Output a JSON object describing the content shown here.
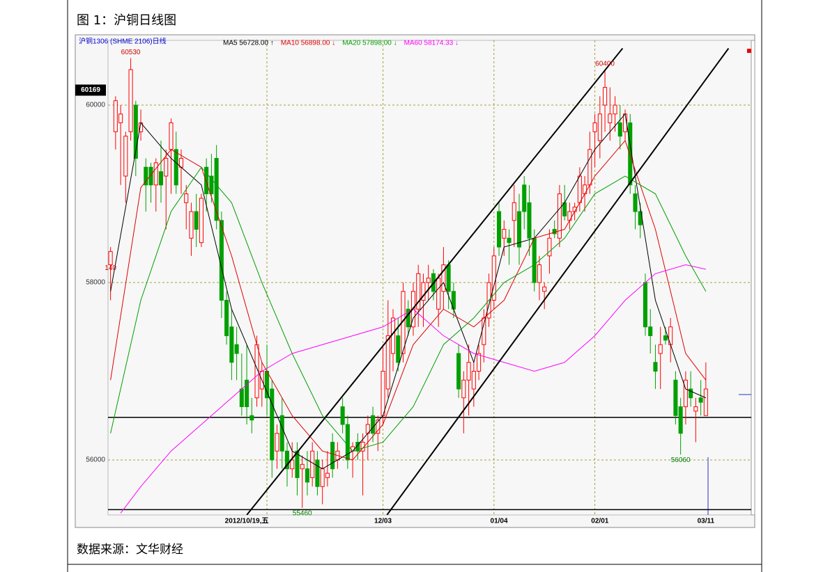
{
  "figure_title": "图 1：沪铜日线图",
  "source": "数据来源：文华财经",
  "chart_data": {
    "type": "candlestick",
    "ylim": [
      55380,
      60730
    ],
    "yticks": [
      56000,
      58000,
      60000
    ],
    "xlim": [
      -0.5,
      127
    ],
    "xgrid": [
      31,
      54,
      76,
      96
    ],
    "grid": true,
    "up_color": "#ff0000",
    "down_color": "#00a000",
    "categories": [
      null,
      null,
      null,
      null,
      null,
      null,
      null,
      null,
      null,
      null,
      null,
      null,
      null,
      null,
      null,
      null,
      null,
      null,
      null,
      null,
      null,
      null,
      null,
      null,
      null,
      null,
      null,
      "2012/10/19,五",
      null,
      null,
      null,
      null,
      null,
      null,
      null,
      null,
      null,
      null,
      null,
      null,
      null,
      null,
      null,
      null,
      null,
      null,
      null,
      null,
      null,
      null,
      null,
      null,
      null,
      null,
      "12/03",
      null,
      null,
      null,
      null,
      null,
      null,
      null,
      null,
      null,
      null,
      null,
      null,
      null,
      null,
      null,
      null,
      null,
      null,
      null,
      null,
      null,
      null,
      "01/04",
      null,
      null,
      null,
      null,
      null,
      null,
      null,
      null,
      null,
      null,
      null,
      null,
      null,
      null,
      null,
      null,
      null,
      null,
      null,
      "02/01",
      null,
      null,
      null,
      null,
      null,
      null,
      null,
      null,
      null,
      null,
      null,
      null,
      null,
      null,
      null,
      null,
      null,
      null,
      null,
      null,
      "03/11"
    ],
    "series": [
      {
        "name": "沪铜1306 (SHME 2106)日线",
        "color": "#0000cc",
        "ohlc": [
          [
            58200,
            58400,
            57800,
            58350
          ],
          [
            59700,
            60100,
            59500,
            60050
          ],
          [
            59800,
            60000,
            59100,
            59900
          ],
          [
            59200,
            59700,
            58900,
            59650
          ],
          [
            59700,
            60530,
            59600,
            60400
          ],
          [
            60000,
            60050,
            59200,
            59400
          ],
          [
            59700,
            59950,
            59600,
            59800
          ],
          [
            59300,
            59400,
            58800,
            59100
          ],
          [
            59300,
            59350,
            58900,
            59100
          ],
          [
            59100,
            59400,
            58800,
            59350
          ],
          [
            59250,
            59600,
            58900,
            59100
          ],
          [
            59200,
            59500,
            58600,
            59400
          ],
          [
            59500,
            59850,
            59000,
            59800
          ],
          [
            59500,
            59700,
            59000,
            59100
          ],
          [
            59300,
            59500,
            59000,
            59400
          ],
          [
            58900,
            59100,
            58600,
            59000
          ],
          [
            58500,
            58900,
            58300,
            58800
          ],
          [
            58800,
            59000,
            58400,
            58600
          ],
          [
            58450,
            59000,
            58400,
            58950
          ],
          [
            59300,
            59400,
            58800,
            59000
          ],
          [
            59200,
            59450,
            58900,
            59000
          ],
          [
            59400,
            59550,
            58600,
            58700
          ],
          [
            58700,
            58800,
            57600,
            57800
          ],
          [
            57800,
            57900,
            57300,
            57400
          ],
          [
            57500,
            57700,
            56900,
            57100
          ],
          [
            57300,
            57500,
            56900,
            57200
          ],
          [
            56800,
            57200,
            56500,
            56600
          ],
          [
            56900,
            57300,
            56400,
            56600
          ],
          [
            56500,
            56700,
            56300,
            56450
          ],
          [
            56700,
            57400,
            56600,
            57300
          ],
          [
            56800,
            57100,
            56600,
            57000
          ],
          [
            57000,
            57300,
            56500,
            56700
          ],
          [
            56800,
            56900,
            55800,
            56000
          ],
          [
            56100,
            56400,
            55900,
            56300
          ],
          [
            56500,
            56700,
            55900,
            56100
          ],
          [
            56100,
            56200,
            55700,
            55900
          ],
          [
            55900,
            56200,
            55800,
            56000
          ],
          [
            56100,
            56200,
            55600,
            55800
          ],
          [
            55900,
            56050,
            55460,
            55950
          ],
          [
            55900,
            56100,
            55600,
            55750
          ],
          [
            55800,
            56200,
            55700,
            56100
          ],
          [
            56000,
            56100,
            55600,
            55700
          ],
          [
            55700,
            56000,
            55500,
            55900
          ],
          [
            55800,
            56100,
            55700,
            55850
          ],
          [
            56200,
            56300,
            55800,
            55900
          ],
          [
            56000,
            56200,
            55900,
            56100
          ],
          [
            56600,
            56700,
            56300,
            56400
          ],
          [
            56400,
            56500,
            55900,
            56000
          ],
          [
            56100,
            56200,
            55800,
            56150
          ],
          [
            56200,
            56300,
            56000,
            56100
          ],
          [
            56100,
            56300,
            55600,
            56200
          ],
          [
            56300,
            56500,
            56000,
            56400
          ],
          [
            56500,
            56600,
            56200,
            56300
          ],
          [
            56300,
            56500,
            56100,
            56450
          ],
          [
            56500,
            57300,
            56400,
            57000
          ],
          [
            56800,
            57800,
            56700,
            57400
          ],
          [
            57200,
            57700,
            57000,
            57600
          ],
          [
            57400,
            57600,
            57000,
            57100
          ],
          [
            57200,
            58000,
            57100,
            57900
          ],
          [
            57700,
            57800,
            57400,
            57500
          ],
          [
            57500,
            58000,
            57400,
            57900
          ],
          [
            57700,
            58200,
            57500,
            58100
          ],
          [
            57800,
            58100,
            57500,
            58000
          ],
          [
            58000,
            58200,
            57800,
            58050
          ],
          [
            58100,
            58150,
            57800,
            57900
          ],
          [
            57700,
            58100,
            57500,
            58050
          ],
          [
            57900,
            58400,
            57700,
            58200
          ],
          [
            58200,
            58250,
            57700,
            57900
          ],
          [
            57900,
            58000,
            57600,
            57700
          ],
          [
            57200,
            57300,
            56700,
            56800
          ],
          [
            56700,
            57000,
            56300,
            56900
          ],
          [
            56900,
            57300,
            56500,
            57100
          ],
          [
            56800,
            57100,
            56600,
            57000
          ],
          [
            57000,
            57300,
            56900,
            57200
          ],
          [
            57300,
            57700,
            57100,
            57600
          ],
          [
            57600,
            58100,
            57500,
            58000
          ],
          [
            57800,
            58400,
            57700,
            58300
          ],
          [
            58800,
            58900,
            58300,
            58400
          ],
          [
            58500,
            58700,
            58300,
            58600
          ],
          [
            58500,
            58600,
            58200,
            58450
          ],
          [
            58700,
            59100,
            58400,
            58900
          ],
          [
            58800,
            59000,
            58200,
            58400
          ],
          [
            59100,
            59200,
            58600,
            58800
          ],
          [
            58900,
            59100,
            58300,
            58500
          ],
          [
            58500,
            58600,
            57900,
            58000
          ],
          [
            58000,
            58300,
            57800,
            58200
          ],
          [
            57900,
            58000,
            57700,
            57950
          ],
          [
            58300,
            58600,
            58100,
            58500
          ],
          [
            58600,
            58700,
            58500,
            58550
          ],
          [
            58500,
            59100,
            58400,
            59000
          ],
          [
            58900,
            59100,
            58700,
            58750
          ],
          [
            58700,
            58900,
            58600,
            58800
          ],
          [
            58800,
            58900,
            58700,
            58850
          ],
          [
            58900,
            59300,
            58800,
            59200
          ],
          [
            59000,
            59200,
            58800,
            59100
          ],
          [
            59100,
            59700,
            59000,
            59500
          ],
          [
            59700,
            59900,
            59300,
            59800
          ],
          [
            59600,
            60100,
            59400,
            59900
          ],
          [
            60000,
            60400,
            59700,
            60200
          ],
          [
            59800,
            60200,
            59600,
            59900
          ],
          [
            59900,
            60100,
            59700,
            60000
          ],
          [
            59800,
            60000,
            59500,
            59650
          ],
          [
            59700,
            59950,
            59600,
            59900
          ],
          [
            59800,
            59900,
            59000,
            59100
          ],
          [
            59000,
            59100,
            58600,
            58800
          ],
          [
            58800,
            58900,
            58500,
            58650
          ],
          [
            58000,
            58100,
            57400,
            57500
          ],
          [
            57500,
            57700,
            57200,
            57400
          ],
          [
            57100,
            57300,
            56800,
            57000
          ],
          [
            57200,
            57500,
            56800,
            57300
          ],
          [
            57400,
            57500,
            57300,
            57350
          ],
          [
            57300,
            57600,
            57100,
            57500
          ],
          [
            56900,
            57000,
            56400,
            56500
          ],
          [
            56600,
            56700,
            56060,
            56300
          ],
          [
            56600,
            57000,
            56400,
            56900
          ],
          [
            56800,
            57000,
            56600,
            56700
          ],
          [
            56550,
            56700,
            56200,
            56600
          ],
          [
            56700,
            56900,
            56500,
            56650
          ],
          [
            56500,
            57100,
            56500,
            56800
          ]
        ]
      }
    ],
    "lines": [
      {
        "name": "MA5 56728.00 ↑",
        "color": "#000000",
        "x": [
          0,
          6,
          12,
          18,
          24,
          30,
          36,
          42,
          48,
          54,
          60,
          66,
          72,
          78,
          84,
          90,
          96,
          102,
          108,
          114,
          118
        ],
        "values": [
          57900,
          59800,
          59400,
          59100,
          57700,
          56900,
          56100,
          55900,
          56100,
          56500,
          57600,
          58000,
          57100,
          58400,
          58500,
          58900,
          59500,
          59900,
          57800,
          56800,
          56700
        ]
      },
      {
        "name": "MA10 56898.00 ↓",
        "color": "#e00000",
        "x": [
          0,
          6,
          12,
          18,
          24,
          30,
          36,
          42,
          48,
          54,
          60,
          66,
          72,
          78,
          84,
          90,
          96,
          102,
          108,
          114,
          118
        ],
        "values": [
          56900,
          59070,
          59500,
          59300,
          58300,
          57100,
          56500,
          56100,
          56000,
          56400,
          57300,
          57700,
          57500,
          57800,
          58500,
          58600,
          59200,
          59600,
          58600,
          57200,
          56900
        ]
      },
      {
        "name": "MA20 57898.00 ↓",
        "color": "#00a000",
        "x": [
          0,
          6,
          12,
          18,
          24,
          30,
          36,
          42,
          48,
          54,
          60,
          66,
          72,
          78,
          84,
          90,
          96,
          102,
          108,
          114,
          118
        ],
        "values": [
          56300,
          57800,
          58800,
          59300,
          58900,
          58000,
          57200,
          56500,
          56100,
          56200,
          56600,
          57300,
          57600,
          58000,
          58200,
          58500,
          59000,
          59200,
          59000,
          58300,
          57900
        ]
      },
      {
        "name": "MA60 58174.33 ↓",
        "color": "#ff00ff",
        "x": [
          2,
          6,
          12,
          18,
          24,
          30,
          36,
          42,
          48,
          54,
          60,
          66,
          72,
          78,
          84,
          90,
          96,
          102,
          108,
          114,
          118
        ],
        "values": [
          55400,
          55700,
          56100,
          56400,
          56700,
          57000,
          57200,
          57300,
          57400,
          57500,
          57700,
          57400,
          57200,
          57100,
          57000,
          57100,
          57400,
          57800,
          58100,
          58200,
          58150
        ]
      }
    ],
    "trend_lines": [
      {
        "x": [
          27,
          101.5
        ],
        "values": [
          55380,
          60640
        ]
      },
      {
        "x": [
          54.8,
          122.5
        ],
        "values": [
          55380,
          60640
        ]
      }
    ],
    "hlines": [
      56480,
      55440
    ],
    "price_labels": [
      {
        "x": 4,
        "value": 60530,
        "label": "60530"
      },
      {
        "x": 98,
        "value": 60400,
        "label": "60400"
      },
      {
        "x": 38,
        "value": 55460,
        "label": "55460"
      },
      {
        "x": 113,
        "value": 56060,
        "label": "56060"
      },
      {
        "x": 0,
        "value": 58100,
        "label": "140"
      }
    ],
    "current_price": {
      "value": 60169,
      "label": "60169"
    }
  }
}
